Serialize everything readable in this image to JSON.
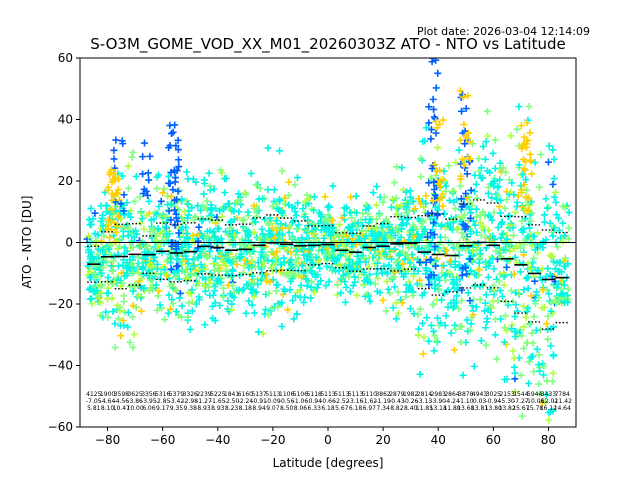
{
  "chart_data": {
    "type": "scatter",
    "title": "S-O3M_GOME_VOD_XX_M01_20260303Z ATO - NTO vs Latitude",
    "plot_date": "Plot date: 2026-03-04 12:14:09",
    "xlabel": "Latitude [degrees]",
    "ylabel": "ATO - NTO [DU]",
    "xlim": [
      -90,
      90
    ],
    "ylim": [
      -60,
      60
    ],
    "xticks": [
      -80,
      -60,
      -40,
      -20,
      0,
      20,
      40,
      60,
      80
    ],
    "yticks": [
      -60,
      -40,
      -20,
      0,
      20,
      40,
      60
    ],
    "xtick_labels": [
      "−80",
      "−60",
      "−40",
      "−20",
      "0",
      "20",
      "40",
      "60",
      "80"
    ],
    "ytick_labels": [
      "−60",
      "−40",
      "−20",
      "0",
      "20",
      "40",
      "60"
    ],
    "zero_line": 0,
    "marker": "+",
    "colors": {
      "cyan": "#00f5e5",
      "green": "#80ff80",
      "lime": "#b0ff40",
      "yellow": "#ffd000",
      "blue": "#0060ff",
      "black": "#000000"
    },
    "bins": [
      {
        "lat": -85,
        "count": "4125",
        "mean": "-7.05",
        "std": "5.81",
        "band": [
          -20,
          20
        ]
      },
      {
        "lat": -80,
        "count": "1900",
        "mean": "-4.64",
        "std": "8.10",
        "band": [
          -25,
          28
        ]
      },
      {
        "lat": -75,
        "count": "3598",
        "mean": "-4.56",
        "std": "10.47",
        "band": [
          -40,
          32
        ]
      },
      {
        "lat": -70,
        "count": "3625",
        "mean": "-3.86",
        "std": "10.00",
        "band": [
          -35,
          30
        ]
      },
      {
        "lat": -65,
        "count": "3356",
        "mean": "-3.95",
        "std": "6.06",
        "band": [
          -30,
          25
        ]
      },
      {
        "lat": -60,
        "count": "5316",
        "mean": "-2.85",
        "std": "9.17",
        "band": [
          -28,
          25
        ]
      },
      {
        "lat": -55,
        "count": "5379",
        "mean": "-3.42",
        "std": "9.35",
        "band": [
          -35,
          40
        ]
      },
      {
        "lat": -50,
        "count": "3326",
        "mean": "-2.98",
        "std": "9.38",
        "band": [
          -30,
          25
        ]
      },
      {
        "lat": -45,
        "count": "2239",
        "mean": "-1.27",
        "std": "8.93",
        "band": [
          -28,
          25
        ]
      },
      {
        "lat": -40,
        "count": "5225",
        "mean": "-1.65",
        "std": "8.93",
        "band": [
          -28,
          24
        ]
      },
      {
        "lat": -35,
        "count": "1841",
        "mean": "-2.50",
        "std": "8.23",
        "band": [
          -30,
          28
        ]
      },
      {
        "lat": -30,
        "count": "6160",
        "mean": "-2.24",
        "std": "8.18",
        "band": [
          -30,
          40
        ]
      },
      {
        "lat": -25,
        "count": "5137",
        "mean": "-0.91",
        "std": "8.94",
        "band": [
          -35,
          40
        ]
      },
      {
        "lat": -20,
        "count": "5113",
        "mean": "-0.09",
        "std": "9.07",
        "band": [
          -30,
          35
        ]
      },
      {
        "lat": -15,
        "count": "1106",
        "mean": "-0.56",
        "std": "8.50",
        "band": [
          -28,
          30
        ]
      },
      {
        "lat": -10,
        "count": "5106",
        "mean": "-1.06",
        "std": "8.06",
        "band": [
          -25,
          25
        ]
      },
      {
        "lat": -5,
        "count": "5118",
        "mean": "-0.94",
        "std": "6.33",
        "band": [
          -22,
          22
        ]
      },
      {
        "lat": 0,
        "count": "5113",
        "mean": "-0.66",
        "std": "6.18",
        "band": [
          -22,
          20
        ]
      },
      {
        "lat": 5,
        "count": "5113",
        "mean": "-2.52",
        "std": "5.67",
        "band": [
          -20,
          18
        ]
      },
      {
        "lat": 10,
        "count": "5113",
        "mean": "-3.16",
        "std": "6.18",
        "band": [
          -20,
          18
        ]
      },
      {
        "lat": 15,
        "count": "5110",
        "mean": "-1.62",
        "std": "6.97",
        "band": [
          -22,
          22
        ]
      },
      {
        "lat": 20,
        "count": "3862",
        "mean": "-1.19",
        "std": "7.34",
        "band": [
          -25,
          24
        ]
      },
      {
        "lat": 25,
        "count": "2879",
        "mean": "-0.43",
        "std": "8.82",
        "band": [
          -30,
          25
        ]
      },
      {
        "lat": 30,
        "count": "1982",
        "mean": "-0.26",
        "std": "8.40",
        "band": [
          -40,
          40
        ]
      },
      {
        "lat": 35,
        "count": "2814",
        "mean": "-3.13",
        "std": "11.85",
        "band": [
          -50,
          55
        ]
      },
      {
        "lat": 40,
        "count": "2983",
        "mean": "-3.90",
        "std": "13.18",
        "band": [
          -55,
          60
        ]
      },
      {
        "lat": 45,
        "count": "2864",
        "mean": "-4.24",
        "std": "11.80",
        "band": [
          -50,
          50
        ]
      },
      {
        "lat": 50,
        "count": "3878",
        "mean": "-1.10",
        "std": "13.68",
        "band": [
          -55,
          55
        ]
      },
      {
        "lat": 55,
        "count": "4943",
        "mean": "0.03",
        "std": "13.81",
        "band": [
          -55,
          50
        ]
      },
      {
        "lat": 60,
        "count": "3025",
        "mean": "-0.94",
        "std": "13.80",
        "band": [
          -55,
          50
        ]
      },
      {
        "lat": 65,
        "count": "2153",
        "mean": "-5.30",
        "std": "13.82",
        "band": [
          -58,
          45
        ]
      },
      {
        "lat": 70,
        "count": "1544",
        "mean": "-7.27",
        "std": "15.67",
        "band": [
          -60,
          45
        ]
      },
      {
        "lat": 75,
        "count": "5944",
        "mean": "-10.06",
        "std": "15.78",
        "band": [
          -60,
          45
        ]
      },
      {
        "lat": 80,
        "count": "3433",
        "mean": "-12.02",
        "std": "16.12",
        "band": [
          -60,
          58
        ]
      },
      {
        "lat": 85,
        "count": "7784",
        "mean": "-11.42",
        "std": "14.64",
        "band": [
          -20,
          20
        ]
      }
    ]
  }
}
